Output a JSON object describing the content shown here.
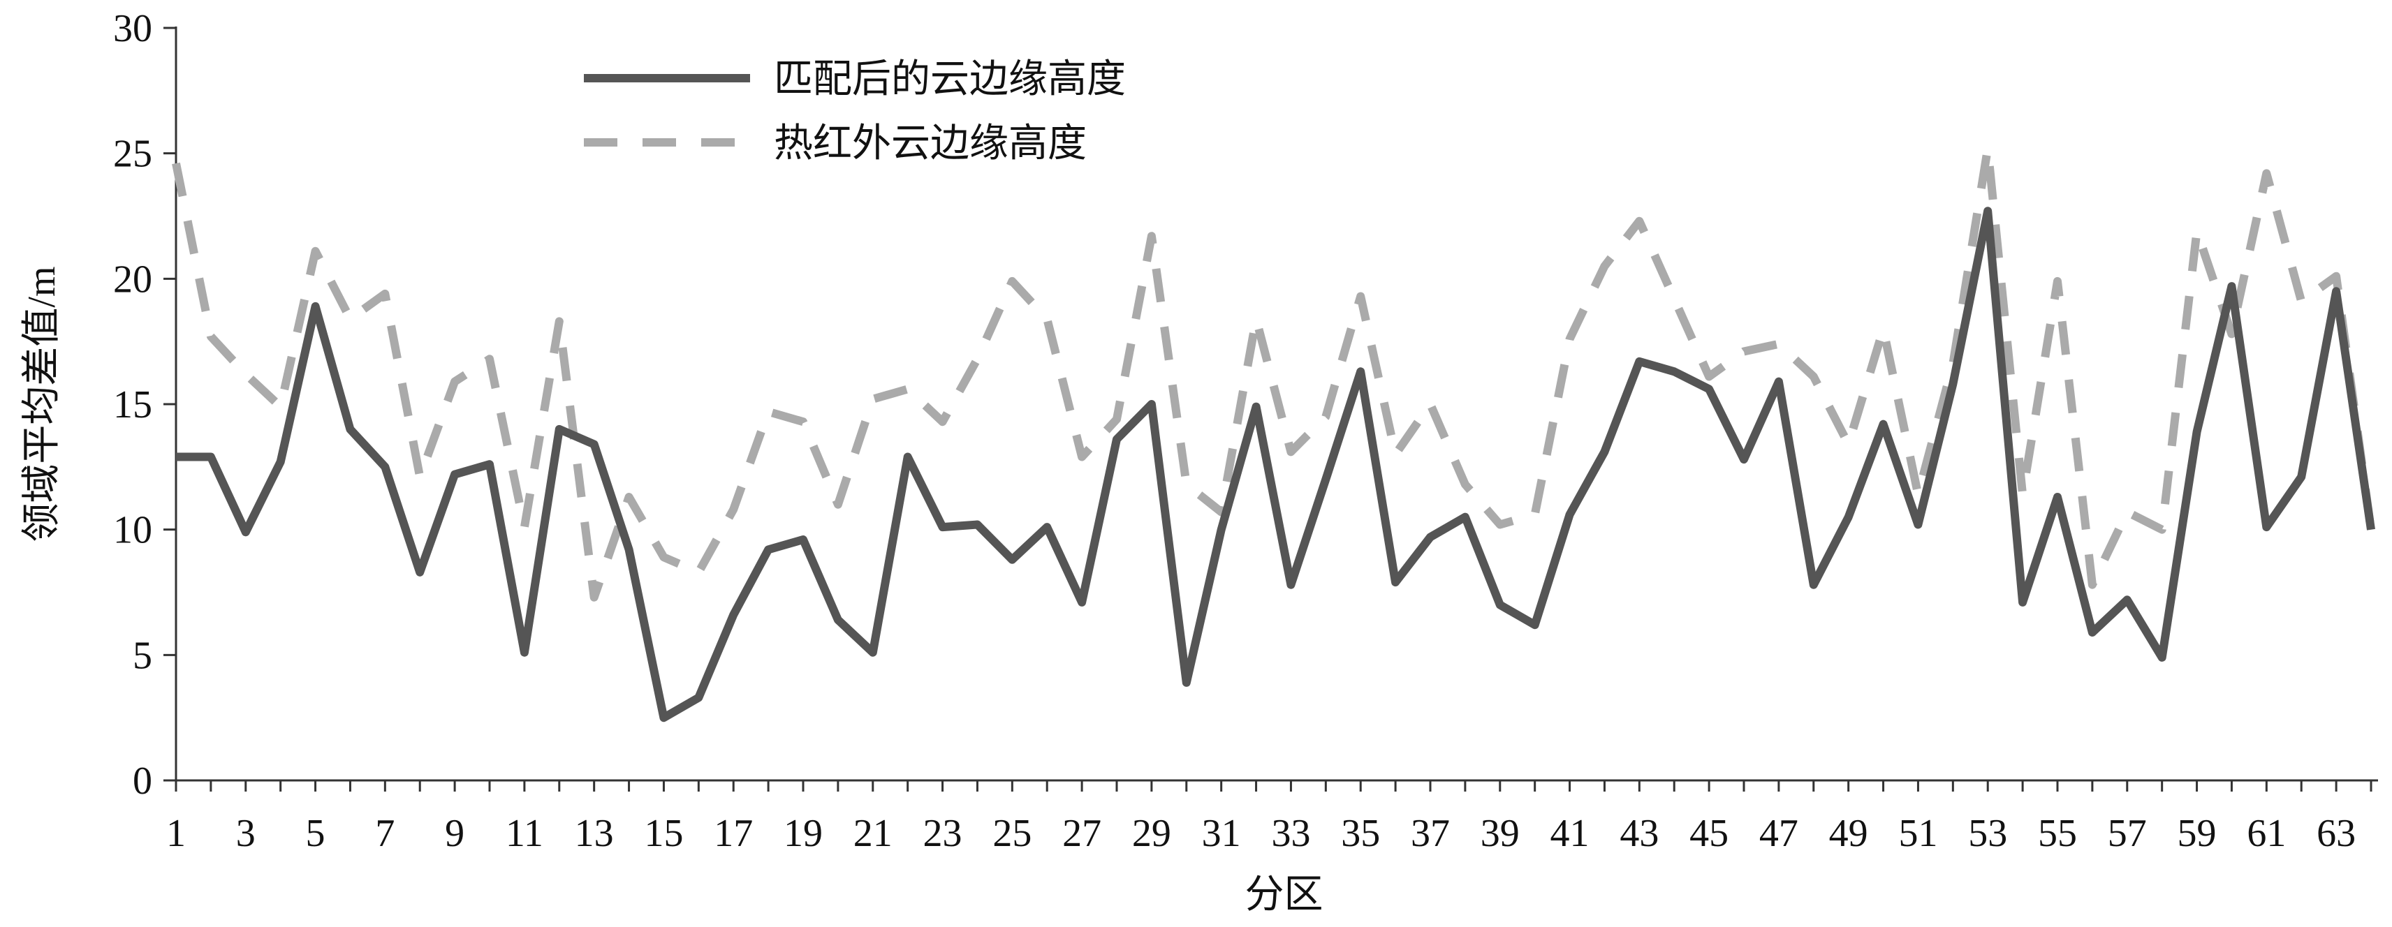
{
  "chart_data": {
    "type": "line",
    "xlabel": "分区",
    "ylabel": "领域平均差值/m",
    "xlim": [
      1,
      64
    ],
    "ylim": [
      0,
      30
    ],
    "yticks": [
      0,
      5,
      10,
      15,
      20,
      25,
      30
    ],
    "xticks": [
      1,
      3,
      5,
      7,
      9,
      11,
      13,
      15,
      17,
      19,
      21,
      23,
      25,
      27,
      29,
      31,
      33,
      35,
      37,
      39,
      41,
      43,
      45,
      47,
      49,
      51,
      53,
      55,
      57,
      59,
      61,
      63
    ],
    "grid": false,
    "legend_position": "top-left",
    "x": [
      1,
      2,
      3,
      4,
      5,
      6,
      7,
      8,
      9,
      10,
      11,
      12,
      13,
      14,
      15,
      16,
      17,
      18,
      19,
      20,
      21,
      22,
      23,
      24,
      25,
      26,
      27,
      28,
      29,
      30,
      31,
      32,
      33,
      34,
      35,
      36,
      37,
      38,
      39,
      40,
      41,
      42,
      43,
      44,
      45,
      46,
      47,
      48,
      49,
      50,
      51,
      52,
      53,
      54,
      55,
      56,
      57,
      58,
      59,
      60,
      61,
      62,
      63,
      64
    ],
    "series": [
      {
        "name": "匹配后的云边缘高度",
        "color": "#555555",
        "style": "solid",
        "values": [
          12.9,
          12.9,
          9.9,
          12.7,
          18.9,
          14.0,
          12.5,
          8.3,
          12.2,
          12.6,
          5.1,
          14.0,
          13.4,
          9.2,
          2.5,
          3.3,
          6.6,
          9.2,
          9.6,
          6.4,
          5.1,
          12.9,
          10.1,
          10.2,
          8.8,
          10.1,
          7.1,
          13.6,
          15.0,
          3.9,
          10.0,
          14.9,
          7.8,
          12.0,
          16.3,
          7.9,
          9.7,
          10.5,
          7.0,
          6.2,
          10.6,
          13.1,
          16.7,
          16.3,
          15.6,
          12.8,
          15.9,
          7.8,
          10.5,
          14.2,
          10.2,
          15.8,
          22.7,
          7.1,
          11.3,
          5.9,
          7.2,
          4.9,
          13.9,
          19.7,
          10.1,
          12.1,
          19.5,
          10.0
        ]
      },
      {
        "name": "热红外云边缘高度",
        "color": "#aaaaaa",
        "style": "dashed",
        "values": [
          24.6,
          17.7,
          16.2,
          14.9,
          21.1,
          18.4,
          19.4,
          12.1,
          15.9,
          16.8,
          10.1,
          18.3,
          7.3,
          11.3,
          8.9,
          8.3,
          10.8,
          14.7,
          14.3,
          11.0,
          15.2,
          15.6,
          14.3,
          16.8,
          19.9,
          18.4,
          12.9,
          14.4,
          21.7,
          11.8,
          10.7,
          18.4,
          13.1,
          14.5,
          19.3,
          13.0,
          15.0,
          11.8,
          10.2,
          10.6,
          17.6,
          20.5,
          22.3,
          19.2,
          16.1,
          17.1,
          17.4,
          16.1,
          13.4,
          18.0,
          11.4,
          16.6,
          25.2,
          11.4,
          19.9,
          7.8,
          10.7,
          10.0,
          21.9,
          17.8,
          24.2,
          19.1,
          20.1,
          10.0
        ]
      }
    ]
  }
}
